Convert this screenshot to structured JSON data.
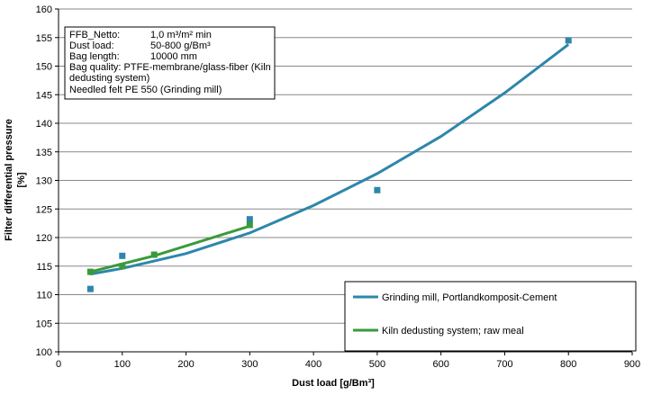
{
  "chart_data": {
    "type": "scatter",
    "title": "",
    "xlabel": "Dust load [g/Bm³]",
    "ylabel_lines": [
      "Filter differential pressure",
      "[%]"
    ],
    "xlim": [
      0,
      900
    ],
    "ylim": [
      100,
      160
    ],
    "x_ticks": [
      "0",
      "100",
      "200",
      "300",
      "400",
      "500",
      "600",
      "700",
      "800",
      "900"
    ],
    "y_ticks": [
      "100",
      "105",
      "110",
      "115",
      "120",
      "125",
      "130",
      "135",
      "140",
      "145",
      "150",
      "155",
      "160"
    ],
    "grid": "horizontal",
    "legend_position": "bottom-right",
    "series": [
      {
        "name": "Grinding mill, Portlandkomposit-Cement",
        "color": "#2e86ab",
        "points": [
          [
            50,
            111.0
          ],
          [
            100,
            116.8
          ],
          [
            300,
            123.2
          ],
          [
            500,
            128.3
          ],
          [
            800,
            154.5
          ]
        ],
        "trend": [
          [
            50,
            113.6
          ],
          [
            100,
            114.6
          ],
          [
            200,
            117.2
          ],
          [
            300,
            120.8
          ],
          [
            400,
            125.6
          ],
          [
            500,
            131.2
          ],
          [
            600,
            137.7
          ],
          [
            700,
            145.3
          ],
          [
            800,
            153.8
          ]
        ]
      },
      {
        "name": "Kiln dedusting system; raw meal",
        "color": "#3a9a3a",
        "points": [
          [
            50,
            114.0
          ],
          [
            100,
            115.0
          ],
          [
            150,
            117.0
          ],
          [
            300,
            122.2
          ]
        ],
        "trend": [
          [
            50,
            114.0
          ],
          [
            150,
            116.8
          ],
          [
            300,
            122.0
          ]
        ]
      }
    ]
  },
  "info_box": [
    {
      "label": "FFB_Netto:",
      "value": "1,0 m³/m² min"
    },
    {
      "label": "Dust load:",
      "value": "50-800 g/Bm³"
    },
    {
      "label": "Bag length:",
      "value": "10000 mm"
    },
    {
      "label": "Bag quality: PTFE-membrane/glass-fiber (Kiln",
      "value": ""
    },
    {
      "label": "dedusting system)",
      "value": ""
    },
    {
      "label": "Needled felt PE 550 (Grinding mill)",
      "value": ""
    }
  ]
}
